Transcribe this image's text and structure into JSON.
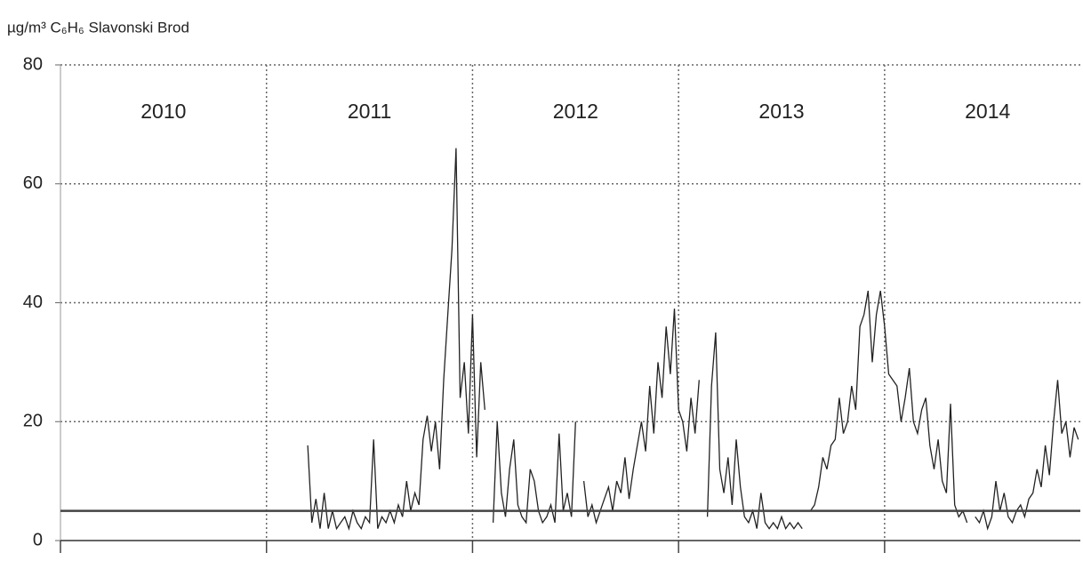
{
  "chart_data": {
    "type": "line",
    "title": "µg/m³ C₆H₆ Slavonski Brod",
    "xlim": [
      2010,
      2014.95
    ],
    "xticks": [
      2010,
      2011,
      2012,
      2013,
      2014
    ],
    "ylim": [
      0,
      80
    ],
    "yticks": [
      0,
      20,
      40,
      60,
      80
    ],
    "grid": true,
    "reference_line": 5,
    "x": [
      2011.2,
      2011.22,
      2011.24,
      2011.26,
      2011.28,
      2011.3,
      2011.32,
      2011.34,
      2011.36,
      2011.38,
      2011.4,
      2011.42,
      2011.44,
      2011.46,
      2011.48,
      2011.5,
      2011.52,
      2011.54,
      2011.56,
      2011.58,
      2011.6,
      2011.62,
      2011.64,
      2011.66,
      2011.68,
      2011.7,
      2011.72,
      2011.74,
      2011.76,
      2011.78,
      2011.8,
      2011.82,
      2011.84,
      2011.86,
      2011.88,
      2011.9,
      2011.92,
      2011.94,
      2011.96,
      2011.98,
      2012.0,
      2012.02,
      2012.04,
      2012.06,
      2012.08,
      2012.1,
      2012.12,
      2012.14,
      2012.16,
      2012.18,
      2012.2,
      2012.22,
      2012.24,
      2012.26,
      2012.28,
      2012.3,
      2012.32,
      2012.34,
      2012.36,
      2012.38,
      2012.4,
      2012.42,
      2012.44,
      2012.46,
      2012.48,
      2012.5,
      2012.52,
      2012.54,
      2012.56,
      2012.58,
      2012.6,
      2012.62,
      2012.64,
      2012.66,
      2012.68,
      2012.7,
      2012.72,
      2012.74,
      2012.76,
      2012.78,
      2012.8,
      2012.82,
      2012.84,
      2012.86,
      2012.88,
      2012.9,
      2012.92,
      2012.94,
      2012.96,
      2012.98,
      2013.0,
      2013.02,
      2013.04,
      2013.06,
      2013.08,
      2013.1,
      2013.12,
      2013.14,
      2013.16,
      2013.18,
      2013.2,
      2013.22,
      2013.24,
      2013.26,
      2013.28,
      2013.3,
      2013.32,
      2013.34,
      2013.36,
      2013.38,
      2013.4,
      2013.42,
      2013.44,
      2013.46,
      2013.48,
      2013.5,
      2013.52,
      2013.54,
      2013.56,
      2013.58,
      2013.6,
      2013.62,
      2013.64,
      2013.66,
      2013.68,
      2013.7,
      2013.72,
      2013.74,
      2013.76,
      2013.78,
      2013.8,
      2013.82,
      2013.84,
      2013.86,
      2013.88,
      2013.9,
      2013.92,
      2013.94,
      2013.96,
      2013.98,
      2014.0,
      2014.02,
      2014.04,
      2014.06,
      2014.08,
      2014.1,
      2014.12,
      2014.14,
      2014.16,
      2014.18,
      2014.2,
      2014.22,
      2014.24,
      2014.26,
      2014.28,
      2014.3,
      2014.32,
      2014.34,
      2014.36,
      2014.38,
      2014.4,
      2014.42,
      2014.44,
      2014.46,
      2014.48,
      2014.5,
      2014.52,
      2014.54,
      2014.56,
      2014.58,
      2014.6,
      2014.62,
      2014.64,
      2014.66,
      2014.68,
      2014.7,
      2014.72,
      2014.74,
      2014.76,
      2014.78,
      2014.8,
      2014.82,
      2014.84,
      2014.86,
      2014.88,
      2014.9,
      2014.92,
      2014.94
    ],
    "series": [
      {
        "color": "#222222",
        "values": [
          16,
          3,
          7,
          2,
          8,
          2,
          5,
          2,
          3,
          4,
          2,
          5,
          3,
          2,
          4,
          3,
          17,
          2,
          4,
          3,
          5,
          3,
          6,
          4,
          10,
          5,
          8,
          6,
          17,
          21,
          15,
          20,
          12,
          27,
          38,
          49,
          66,
          24,
          30,
          18,
          38,
          14,
          30,
          22,
          null,
          3,
          20,
          8,
          4,
          12,
          17,
          6,
          4,
          3,
          12,
          10,
          5,
          3,
          4,
          6,
          3,
          18,
          5,
          8,
          4,
          20,
          null,
          10,
          4,
          6,
          3,
          5,
          7,
          9,
          5,
          10,
          8,
          14,
          7,
          12,
          16,
          20,
          15,
          26,
          18,
          30,
          24,
          36,
          28,
          39,
          22,
          20,
          15,
          24,
          18,
          27,
          null,
          4,
          26,
          35,
          12,
          8,
          14,
          6,
          17,
          9,
          4,
          3,
          5,
          2,
          8,
          3,
          2,
          3,
          2,
          4,
          2,
          3,
          2,
          3,
          2,
          null,
          5,
          6,
          9,
          14,
          12,
          16,
          17,
          24,
          18,
          20,
          26,
          22,
          36,
          38,
          42,
          30,
          38,
          42,
          36,
          28,
          27,
          26,
          20,
          24,
          29,
          20,
          18,
          22,
          24,
          16,
          12,
          17,
          10,
          8,
          23,
          6,
          4,
          5,
          3,
          null,
          4,
          3,
          5,
          2,
          4,
          10,
          5,
          8,
          4,
          3,
          5,
          6,
          4,
          7,
          8,
          12,
          9,
          16,
          11,
          20,
          27,
          18,
          20,
          14,
          19,
          17
        ]
      }
    ]
  }
}
